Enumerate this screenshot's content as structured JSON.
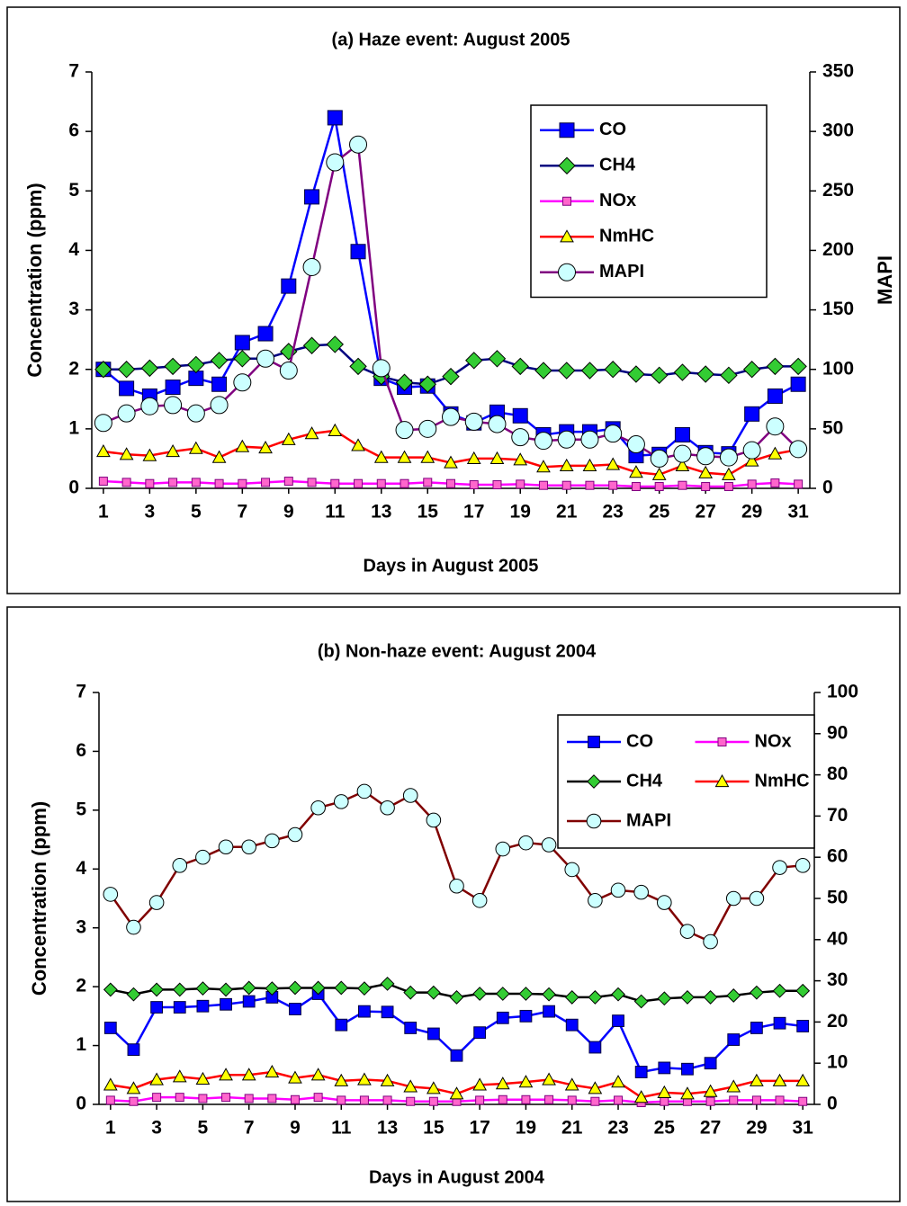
{
  "chart_data": [
    {
      "type": "line",
      "title": "(a) Haze event: August 2005",
      "x_label": "Days in August 2005",
      "y_label": "Concentration (ppm)",
      "y2_label": "MAPI",
      "x": [
        1,
        2,
        3,
        4,
        5,
        6,
        7,
        8,
        9,
        10,
        11,
        12,
        13,
        14,
        15,
        16,
        17,
        18,
        19,
        20,
        21,
        22,
        23,
        24,
        25,
        26,
        27,
        28,
        29,
        30,
        31
      ],
      "xlim": [
        0.5,
        31.5
      ],
      "xticks": [
        1,
        3,
        5,
        7,
        9,
        11,
        13,
        15,
        17,
        19,
        21,
        23,
        25,
        27,
        29,
        31
      ],
      "ylim": [
        0,
        7
      ],
      "yticks": [
        0,
        1,
        2,
        3,
        4,
        5,
        6,
        7
      ],
      "y2lim": [
        0,
        350
      ],
      "y2ticks": [
        0,
        50,
        100,
        150,
        200,
        250,
        300,
        350
      ],
      "legend": "upper right",
      "legend_columns": 1,
      "series": [
        {
          "name": "CO",
          "color": "#0000ff",
          "marker": "square",
          "marker_color": "#0000ff",
          "values": [
            2.0,
            1.68,
            1.55,
            1.7,
            1.85,
            1.75,
            2.45,
            2.6,
            3.4,
            4.9,
            6.23,
            3.98,
            1.85,
            1.7,
            1.72,
            1.25,
            1.1,
            1.28,
            1.22,
            0.9,
            0.95,
            0.95,
            1.0,
            0.55,
            0.57,
            0.9,
            0.6,
            0.58,
            1.25,
            1.55,
            1.75
          ]
        },
        {
          "name": "CH4",
          "color": "#000080",
          "marker": "diamond",
          "marker_color": "#33cc33",
          "values": [
            2.0,
            2.0,
            2.02,
            2.05,
            2.08,
            2.15,
            2.18,
            2.18,
            2.3,
            2.4,
            2.42,
            2.05,
            1.88,
            1.78,
            1.75,
            1.88,
            2.15,
            2.18,
            2.05,
            1.98,
            1.98,
            1.98,
            2.0,
            1.92,
            1.9,
            1.95,
            1.92,
            1.9,
            2.0,
            2.05,
            2.05
          ]
        },
        {
          "name": "NOx",
          "color": "#ff00ff",
          "marker": "small-square",
          "marker_color": "#ff66cc",
          "values": [
            0.12,
            0.1,
            0.08,
            0.1,
            0.1,
            0.08,
            0.08,
            0.1,
            0.12,
            0.1,
            0.08,
            0.08,
            0.08,
            0.08,
            0.1,
            0.08,
            0.06,
            0.06,
            0.07,
            0.05,
            0.05,
            0.05,
            0.05,
            0.03,
            0.03,
            0.05,
            0.03,
            0.03,
            0.07,
            0.09,
            0.07
          ]
        },
        {
          "name": "NmHC",
          "color": "#ff0000",
          "marker": "triangle",
          "marker_color": "#ffff00",
          "values": [
            0.62,
            0.57,
            0.55,
            0.62,
            0.67,
            0.52,
            0.7,
            0.68,
            0.82,
            0.92,
            0.97,
            0.72,
            0.52,
            0.52,
            0.52,
            0.43,
            0.5,
            0.5,
            0.48,
            0.36,
            0.38,
            0.38,
            0.4,
            0.27,
            0.23,
            0.38,
            0.26,
            0.23,
            0.46,
            0.58,
            0.65
          ]
        },
        {
          "name": "MAPI",
          "color": "#800080",
          "marker": "circle",
          "marker_color": "#ccffff",
          "axis": "y2",
          "values": [
            55,
            63,
            69,
            70,
            63,
            70,
            89,
            109,
            99,
            186,
            274,
            289,
            101,
            49,
            50,
            60,
            56,
            54,
            43,
            40,
            41,
            41,
            46,
            37,
            25,
            29,
            27,
            26,
            32,
            52,
            33
          ]
        }
      ]
    },
    {
      "type": "line",
      "title": "(b) Non-haze event: August 2004",
      "x_label": "Days in August 2004",
      "y_label": "Concentration (ppm)",
      "x": [
        1,
        2,
        3,
        4,
        5,
        6,
        7,
        8,
        9,
        10,
        11,
        12,
        13,
        14,
        15,
        16,
        17,
        18,
        19,
        20,
        21,
        22,
        23,
        24,
        25,
        26,
        27,
        28,
        29,
        30,
        31
      ],
      "xlim": [
        0.5,
        31.5
      ],
      "xticks": [
        1,
        3,
        5,
        7,
        9,
        11,
        13,
        15,
        17,
        19,
        21,
        23,
        25,
        27,
        29,
        31
      ],
      "ylim": [
        0,
        7
      ],
      "yticks": [
        0,
        1,
        2,
        3,
        4,
        5,
        6,
        7
      ],
      "y2lim": [
        0,
        100
      ],
      "y2ticks": [
        0,
        10,
        20,
        30,
        40,
        50,
        60,
        70,
        80,
        90,
        100
      ],
      "legend": "upper right",
      "legend_columns": 2,
      "series": [
        {
          "name": "CO",
          "color": "#0000ff",
          "marker": "square",
          "marker_color": "#0000ff",
          "values": [
            1.3,
            0.93,
            1.65,
            1.65,
            1.67,
            1.7,
            1.75,
            1.82,
            1.62,
            1.88,
            1.35,
            1.58,
            1.57,
            1.3,
            1.2,
            0.83,
            1.22,
            1.47,
            1.5,
            1.58,
            1.35,
            0.97,
            1.42,
            0.55,
            0.62,
            0.6,
            0.7,
            1.1,
            1.3,
            1.38,
            1.33
          ]
        },
        {
          "name": "NOx",
          "color": "#ff00ff",
          "marker": "small-square",
          "marker_color": "#ff66cc",
          "values": [
            0.07,
            0.05,
            0.12,
            0.12,
            0.1,
            0.12,
            0.1,
            0.1,
            0.08,
            0.12,
            0.07,
            0.07,
            0.07,
            0.05,
            0.05,
            0.05,
            0.07,
            0.08,
            0.08,
            0.08,
            0.07,
            0.05,
            0.07,
            0.03,
            0.05,
            0.05,
            0.05,
            0.07,
            0.07,
            0.07,
            0.05
          ]
        },
        {
          "name": "CH4",
          "color": "#000000",
          "marker": "diamond",
          "marker_color": "#33cc33",
          "values": [
            1.95,
            1.87,
            1.95,
            1.95,
            1.97,
            1.95,
            1.98,
            1.97,
            1.98,
            1.98,
            1.98,
            1.97,
            2.05,
            1.9,
            1.9,
            1.82,
            1.88,
            1.88,
            1.88,
            1.87,
            1.82,
            1.82,
            1.87,
            1.75,
            1.8,
            1.82,
            1.82,
            1.85,
            1.9,
            1.93,
            1.93
          ]
        },
        {
          "name": "NmHC",
          "color": "#ff0000",
          "marker": "triangle",
          "marker_color": "#ffff00",
          "values": [
            0.33,
            0.27,
            0.42,
            0.47,
            0.43,
            0.5,
            0.5,
            0.55,
            0.45,
            0.5,
            0.4,
            0.42,
            0.4,
            0.3,
            0.27,
            0.18,
            0.33,
            0.35,
            0.38,
            0.42,
            0.33,
            0.27,
            0.38,
            0.12,
            0.2,
            0.18,
            0.22,
            0.3,
            0.4,
            0.4,
            0.4
          ]
        },
        {
          "name": "MAPI",
          "color": "#800000",
          "marker": "circle",
          "marker_color": "#ccffff",
          "axis": "y2",
          "values": [
            51,
            43,
            49,
            58,
            60,
            62.5,
            62.5,
            64,
            65.5,
            72,
            73.5,
            76,
            72,
            75,
            69,
            53,
            49.5,
            62,
            63.5,
            63,
            57,
            49.5,
            52,
            51.5,
            49,
            42,
            39.5,
            50,
            50,
            57.5,
            58
          ]
        }
      ]
    }
  ]
}
